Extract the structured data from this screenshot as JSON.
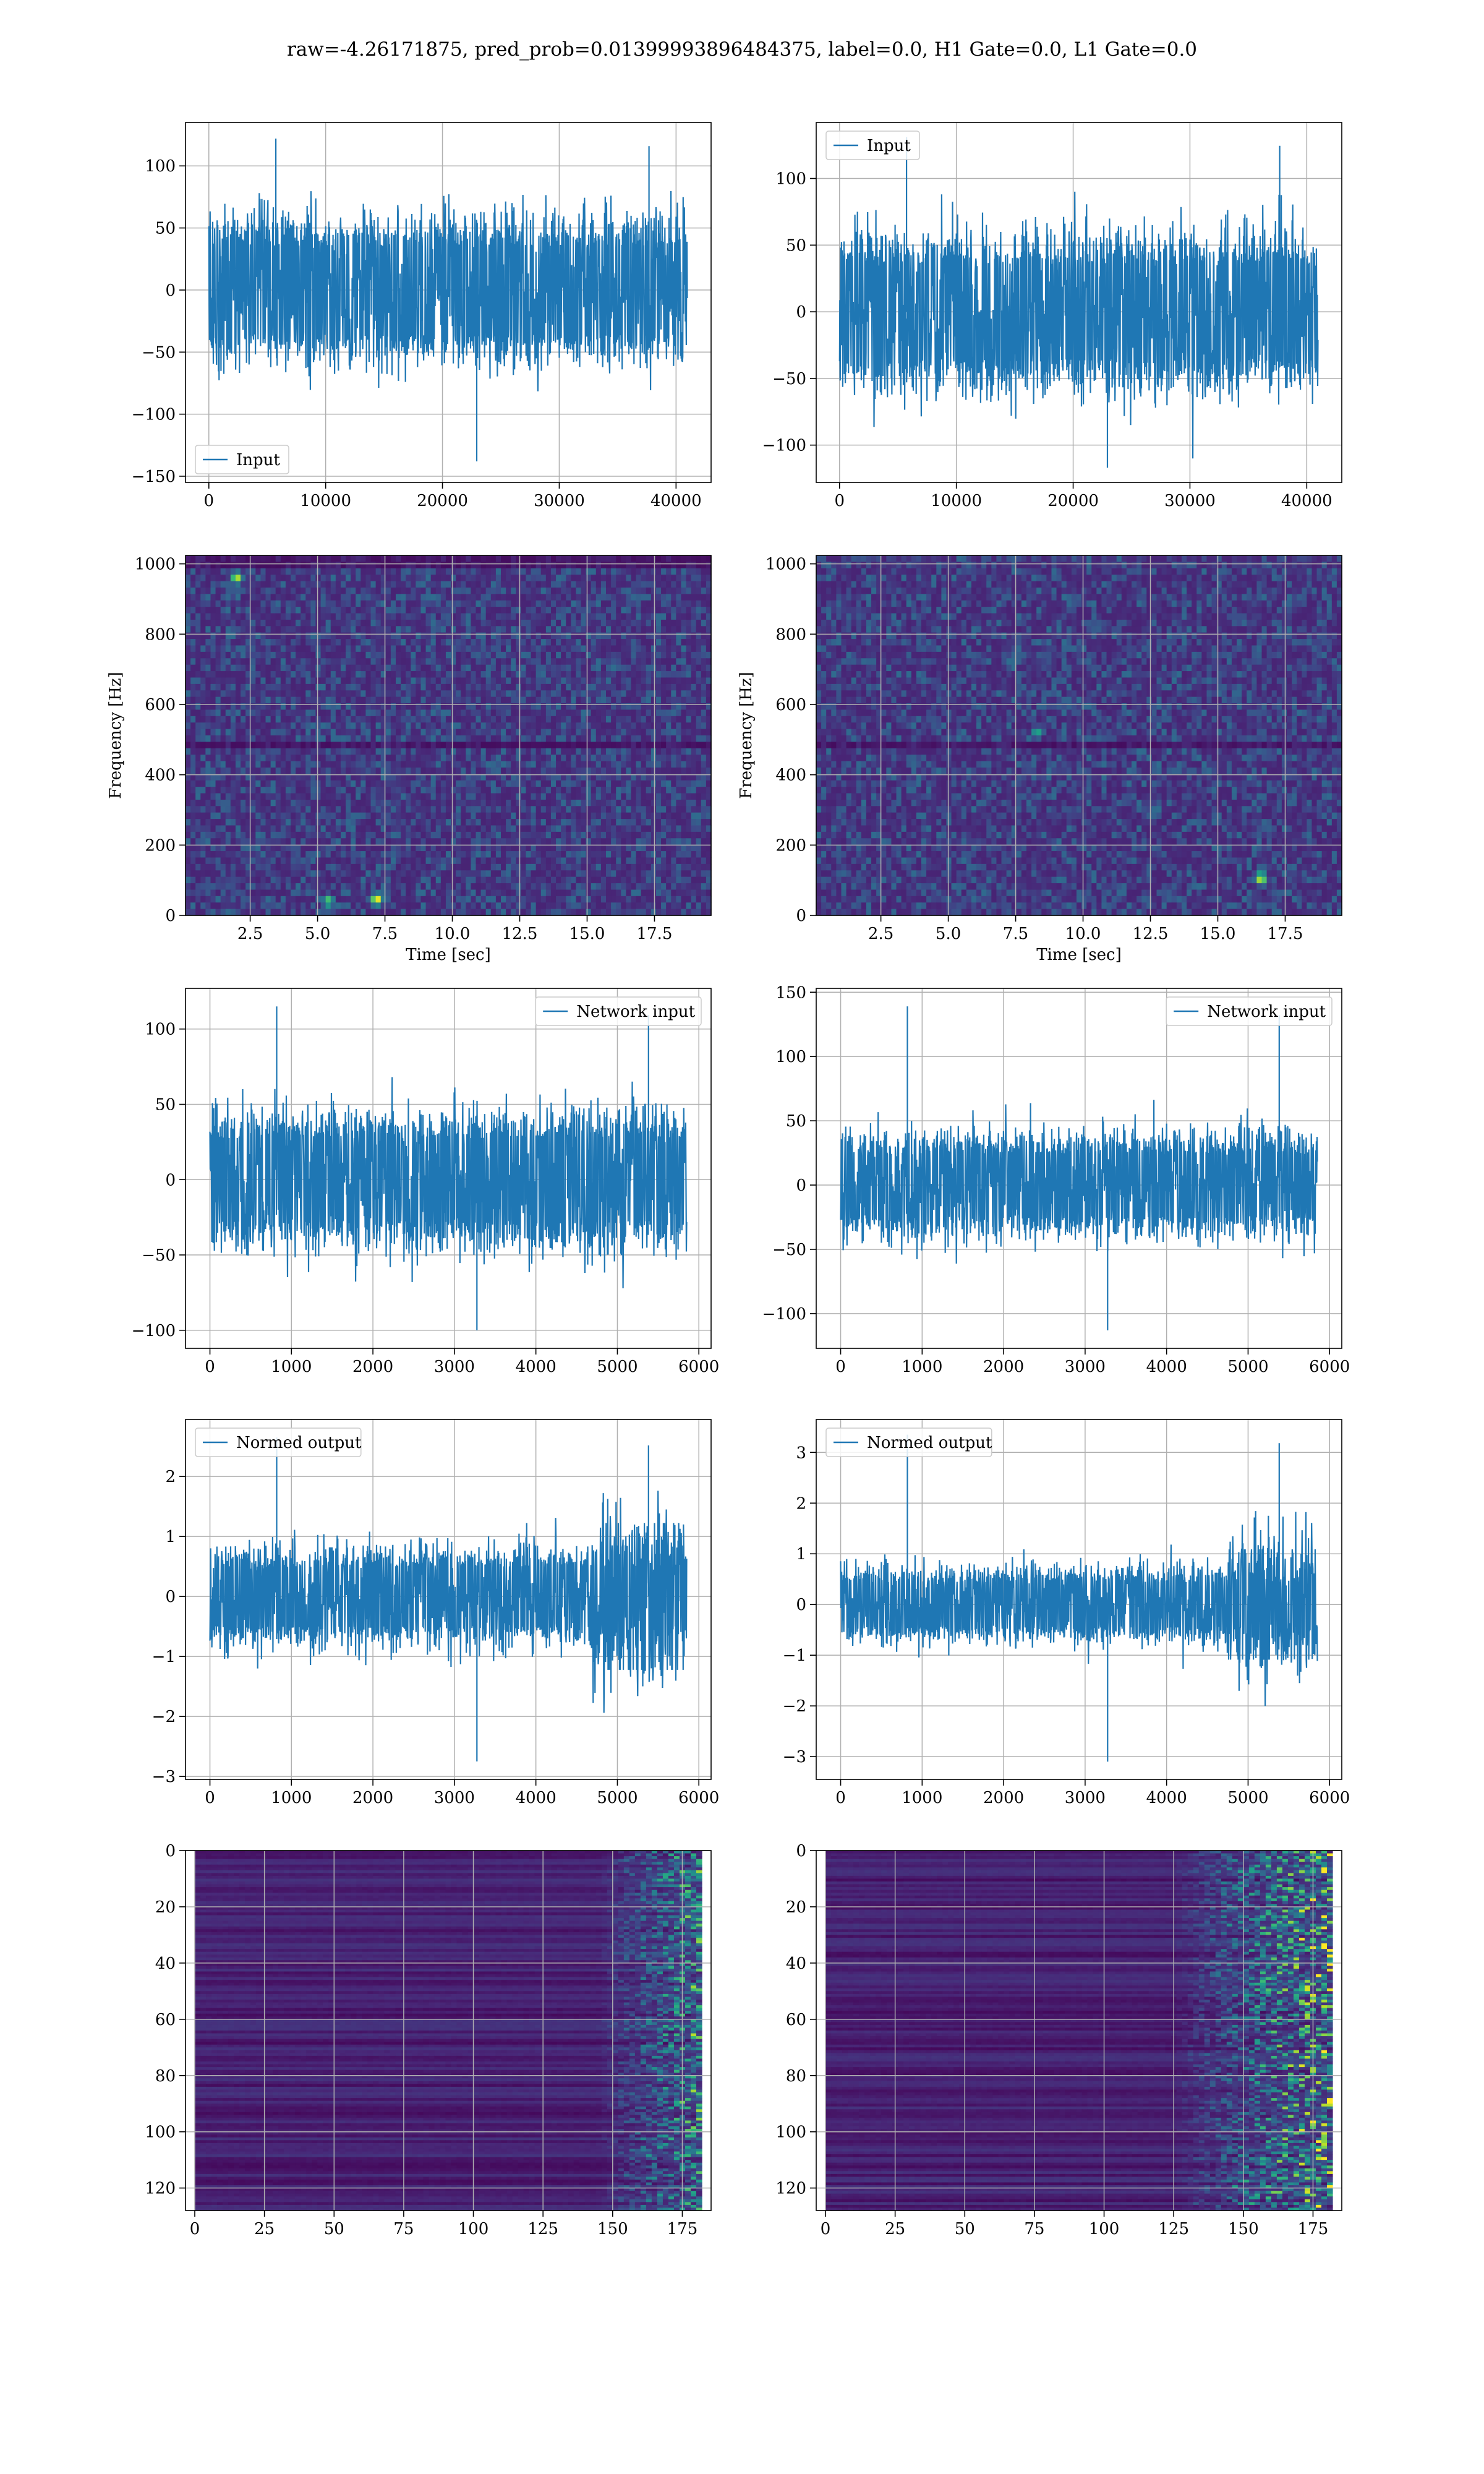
{
  "figure": {
    "title": "raw=-4.26171875, pred_prob=0.01399993896484375, label=0.0, H1 Gate=0.0, L1 Gate=0.0"
  },
  "colors": {
    "signal": "#1f77b4",
    "viridis_low": "#440154",
    "viridis_mid": "#21918c",
    "viridis_high": "#fde725"
  },
  "chart_data": [
    {
      "id": "h1-input",
      "type": "line",
      "series": [
        {
          "name": "Input",
          "typical_band": [
            -65,
            65
          ],
          "extremes": [
            -138,
            122
          ]
        }
      ],
      "xlim": [
        -2000,
        43000
      ],
      "ylim": [
        -155,
        135
      ],
      "xticks": [
        0,
        10000,
        20000,
        30000,
        40000
      ],
      "yticks": [
        -150,
        -100,
        -50,
        0,
        50,
        100
      ],
      "xticklabels": [
        "0",
        "10000",
        "20000",
        "30000",
        "40000"
      ],
      "yticklabels": [
        "−150",
        "−100",
        "−50",
        "0",
        "50",
        "100"
      ],
      "x_range": [
        0,
        40960
      ],
      "grid": true,
      "legend": "lower-left",
      "xlabel": "",
      "ylabel": ""
    },
    {
      "id": "l1-input",
      "type": "line",
      "series": [
        {
          "name": "Input",
          "typical_band": [
            -65,
            65
          ],
          "extremes": [
            -117,
            131
          ]
        }
      ],
      "xlim": [
        -2000,
        43000
      ],
      "ylim": [
        -128,
        142
      ],
      "xticks": [
        0,
        10000,
        20000,
        30000,
        40000
      ],
      "yticks": [
        -100,
        -50,
        0,
        50,
        100
      ],
      "xticklabels": [
        "0",
        "10000",
        "20000",
        "30000",
        "40000"
      ],
      "yticklabels": [
        "−100",
        "−50",
        "0",
        "50",
        "100"
      ],
      "x_range": [
        0,
        40960
      ],
      "grid": true,
      "legend": "upper-left",
      "xlabel": "",
      "ylabel": ""
    },
    {
      "id": "h1-spectrogram",
      "type": "heatmap",
      "colormap": "viridis",
      "xlim": [
        0.1,
        19.6
      ],
      "ylim": [
        0,
        1024
      ],
      "xticks": [
        2.5,
        5.0,
        7.5,
        10.0,
        12.5,
        15.0,
        17.5
      ],
      "yticks": [
        0,
        200,
        400,
        600,
        800,
        1000
      ],
      "xticklabels": [
        "2.5",
        "5.0",
        "7.5",
        "10.0",
        "12.5",
        "15.0",
        "17.5"
      ],
      "yticklabels": [
        "0",
        "200",
        "400",
        "600",
        "800",
        "1000"
      ],
      "xlabel": "Time [sec]",
      "ylabel": "Frequency [Hz]",
      "grid": true,
      "dark_rows_hz": [
        490,
        1005
      ],
      "hotspots": [
        {
          "x": 7.2,
          "y": 45,
          "v": 1.0
        },
        {
          "x": 2.0,
          "y": 960,
          "v": 0.9
        },
        {
          "x": 5.4,
          "y": 40,
          "v": 0.75
        }
      ]
    },
    {
      "id": "l1-spectrogram",
      "type": "heatmap",
      "colormap": "viridis",
      "xlim": [
        0.1,
        19.6
      ],
      "ylim": [
        0,
        1024
      ],
      "xticks": [
        2.5,
        5.0,
        7.5,
        10.0,
        12.5,
        15.0,
        17.5
      ],
      "yticks": [
        0,
        200,
        400,
        600,
        800,
        1000
      ],
      "xticklabels": [
        "2.5",
        "5.0",
        "7.5",
        "10.0",
        "12.5",
        "15.0",
        "17.5"
      ],
      "yticklabels": [
        "0",
        "200",
        "400",
        "600",
        "800",
        "1000"
      ],
      "xlabel": "Time [sec]",
      "ylabel": "Frequency [Hz]",
      "grid": true,
      "dark_rows_hz": [
        490
      ],
      "hotspots": [
        {
          "x": 16.6,
          "y": 105,
          "v": 0.95
        },
        {
          "x": 8.3,
          "y": 520,
          "v": 0.6
        }
      ]
    },
    {
      "id": "h1-network-input",
      "type": "line",
      "series": [
        {
          "name": "Network input",
          "typical_band": [
            -50,
            50
          ],
          "extremes": [
            -100,
            115
          ]
        }
      ],
      "xlim": [
        -300,
        6150
      ],
      "ylim": [
        -112,
        127
      ],
      "xticks": [
        0,
        1000,
        2000,
        3000,
        4000,
        5000,
        6000
      ],
      "yticks": [
        -100,
        -50,
        0,
        50,
        100
      ],
      "xticklabels": [
        "0",
        "1000",
        "2000",
        "3000",
        "4000",
        "5000",
        "6000"
      ],
      "yticklabels": [
        "−100",
        "−50",
        "0",
        "50",
        "100"
      ],
      "x_range": [
        0,
        5850
      ],
      "grid": true,
      "legend": "upper-right",
      "xlabel": "",
      "ylabel": ""
    },
    {
      "id": "l1-network-input",
      "type": "line",
      "series": [
        {
          "name": "Network input",
          "typical_band": [
            -45,
            45
          ],
          "extremes": [
            -113,
            139
          ]
        }
      ],
      "xlim": [
        -300,
        6150
      ],
      "ylim": [
        -127,
        153
      ],
      "xticks": [
        0,
        1000,
        2000,
        3000,
        4000,
        5000,
        6000
      ],
      "yticks": [
        -100,
        -50,
        0,
        50,
        100,
        150
      ],
      "xticklabels": [
        "0",
        "1000",
        "2000",
        "3000",
        "4000",
        "5000",
        "6000"
      ],
      "yticklabels": [
        "−100",
        "−50",
        "0",
        "50",
        "100",
        "150"
      ],
      "x_range": [
        0,
        5850
      ],
      "grid": true,
      "legend": "upper-right",
      "xlabel": "",
      "ylabel": ""
    },
    {
      "id": "h1-normed-output",
      "type": "line",
      "series": [
        {
          "name": "Normed output",
          "typical_band": [
            -0.9,
            0.9
          ],
          "extremes": [
            -2.75,
            2.65
          ]
        }
      ],
      "xlim": [
        -300,
        6150
      ],
      "ylim": [
        -3.05,
        2.95
      ],
      "xticks": [
        0,
        1000,
        2000,
        3000,
        4000,
        5000,
        6000
      ],
      "yticks": [
        -3,
        -2,
        -1,
        0,
        1,
        2
      ],
      "xticklabels": [
        "0",
        "1000",
        "2000",
        "3000",
        "4000",
        "5000",
        "6000"
      ],
      "yticklabels": [
        "−3",
        "−2",
        "−1",
        "0",
        "1",
        "2"
      ],
      "x_range": [
        0,
        5850
      ],
      "grid": true,
      "legend": "upper-left",
      "xlabel": "",
      "ylabel": "",
      "high_variance_segment": {
        "start": 4700,
        "end": 5850,
        "amplitude": 2.3
      }
    },
    {
      "id": "l1-normed-output",
      "type": "line",
      "series": [
        {
          "name": "Normed output",
          "typical_band": [
            -0.8,
            0.8
          ],
          "extremes": [
            -3.1,
            3.35
          ]
        }
      ],
      "xlim": [
        -300,
        6150
      ],
      "ylim": [
        -3.45,
        3.65
      ],
      "xticks": [
        0,
        1000,
        2000,
        3000,
        4000,
        5000,
        6000
      ],
      "yticks": [
        -3,
        -2,
        -1,
        0,
        1,
        2,
        3
      ],
      "xticklabels": [
        "0",
        "1000",
        "2000",
        "3000",
        "4000",
        "5000",
        "6000"
      ],
      "yticklabels": [
        "−3",
        "−2",
        "−1",
        "0",
        "1",
        "2",
        "3"
      ],
      "x_range": [
        0,
        5850
      ],
      "grid": true,
      "legend": "upper-left",
      "xlabel": "",
      "ylabel": "",
      "high_variance_segment": {
        "start": 4750,
        "end": 5850,
        "amplitude": 2.6
      }
    },
    {
      "id": "h1-features",
      "type": "heatmap",
      "colormap": "viridis",
      "xlim": [
        0,
        182
      ],
      "ylim": [
        128,
        0
      ],
      "xticks": [
        0,
        25,
        50,
        75,
        100,
        125,
        150,
        175
      ],
      "yticks": [
        0,
        20,
        40,
        60,
        80,
        100,
        120
      ],
      "xticklabels": [
        "0",
        "25",
        "50",
        "75",
        "100",
        "125",
        "150",
        "175"
      ],
      "yticklabels": [
        "0",
        "20",
        "40",
        "60",
        "80",
        "100",
        "120"
      ],
      "xlabel": "",
      "ylabel": "",
      "grid": true,
      "activity_onset": 145,
      "peak_intensity": 0.75
    },
    {
      "id": "l1-features",
      "type": "heatmap",
      "colormap": "viridis",
      "xlim": [
        0,
        182
      ],
      "ylim": [
        128,
        0
      ],
      "xticks": [
        0,
        25,
        50,
        75,
        100,
        125,
        150,
        175
      ],
      "yticks": [
        0,
        20,
        40,
        60,
        80,
        100,
        120
      ],
      "xticklabels": [
        "0",
        "25",
        "50",
        "75",
        "100",
        "125",
        "150",
        "175"
      ],
      "yticklabels": [
        "0",
        "20",
        "40",
        "60",
        "80",
        "100",
        "120"
      ],
      "xlabel": "",
      "ylabel": "",
      "grid": true,
      "activity_onset": 125,
      "peak_intensity": 1.0
    }
  ]
}
